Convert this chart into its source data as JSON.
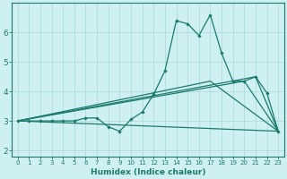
{
  "xlabel": "Humidex (Indice chaleur)",
  "bg_color": "#cff0f0",
  "line_color": "#1a7a6e",
  "grid_color": "#aad8d8",
  "x_ticks": [
    0,
    1,
    2,
    3,
    4,
    5,
    6,
    7,
    8,
    9,
    10,
    11,
    12,
    13,
    14,
    15,
    16,
    17,
    18,
    19,
    20,
    21,
    22,
    23
  ],
  "xlim": [
    -0.5,
    23.5
  ],
  "ylim": [
    1.8,
    7.0
  ],
  "y_ticks": [
    2,
    3,
    4,
    5,
    6
  ],
  "line_main": {
    "x": [
      0,
      1,
      2,
      3,
      4,
      5,
      6,
      7,
      8,
      9,
      10,
      11,
      12,
      13,
      14,
      15,
      16,
      17,
      18,
      19,
      20,
      21,
      22,
      23
    ],
    "y": [
      3.0,
      3.0,
      3.0,
      3.0,
      3.0,
      3.0,
      3.1,
      3.1,
      2.8,
      2.65,
      3.05,
      3.3,
      3.9,
      4.7,
      6.4,
      6.3,
      5.9,
      6.6,
      5.3,
      4.35,
      4.35,
      4.5,
      3.95,
      2.65
    ]
  },
  "line_flat": {
    "x": [
      0,
      23
    ],
    "y": [
      3.0,
      2.65
    ]
  },
  "line_reg1": {
    "x": [
      0,
      17,
      23
    ],
    "y": [
      3.0,
      4.35,
      2.65
    ]
  },
  "line_reg2": {
    "x": [
      0,
      21,
      23
    ],
    "y": [
      3.0,
      4.5,
      2.65
    ]
  },
  "line_reg3": {
    "x": [
      0,
      20,
      23
    ],
    "y": [
      3.0,
      4.35,
      2.65
    ]
  }
}
